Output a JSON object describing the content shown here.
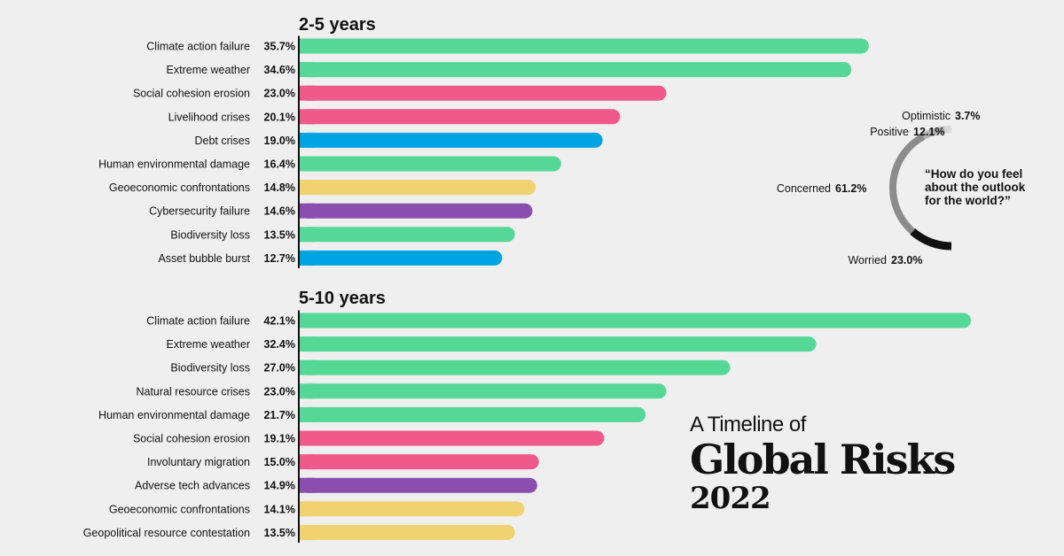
{
  "colors": {
    "environmental": "#55d896",
    "societal": "#f05a8a",
    "economic": "#00a4e0",
    "geopolitical": "#f0d270",
    "technological": "#8a4fae",
    "background": "#f0eff0"
  },
  "chart_data": [
    {
      "type": "bar",
      "title": "2-5 years",
      "categories": [
        "Climate action failure",
        "Extreme weather",
        "Social cohesion erosion",
        "Livelihood crises",
        "Debt crises",
        "Human environmental damage",
        "Geoeconomic confrontations",
        "Cybersecurity failure",
        "Biodiversity loss",
        "Asset bubble burst"
      ],
      "values": [
        35.7,
        34.6,
        23.0,
        20.1,
        19.0,
        16.4,
        14.8,
        14.6,
        13.5,
        12.7
      ],
      "value_labels": [
        "35.7%",
        "34.6%",
        "23.0%",
        "20.1%",
        "19.0%",
        "16.4%",
        "14.8%",
        "14.6%",
        "13.5%",
        "12.7%"
      ],
      "categories_color": [
        "environmental",
        "environmental",
        "societal",
        "societal",
        "economic",
        "environmental",
        "geopolitical",
        "technological",
        "environmental",
        "economic"
      ],
      "xlabel": "",
      "ylabel": "",
      "grid": false
    },
    {
      "type": "bar",
      "title": "5-10 years",
      "categories": [
        "Climate action failure",
        "Extreme weather",
        "Biodiversity loss",
        "Natural resource crises",
        "Human environmental damage",
        "Social cohesion erosion",
        "Involuntary migration",
        "Adverse tech advances",
        "Geoeconomic confrontations",
        "Geopolitical resource contestation"
      ],
      "values": [
        42.1,
        32.4,
        27.0,
        23.0,
        21.7,
        19.1,
        15.0,
        14.9,
        14.1,
        13.5
      ],
      "value_labels": [
        "42.1%",
        "32.4%",
        "27.0%",
        "23.0%",
        "21.7%",
        "19.1%",
        "15.0%",
        "14.9%",
        "14.1%",
        "13.5%"
      ],
      "categories_color": [
        "environmental",
        "environmental",
        "environmental",
        "environmental",
        "environmental",
        "societal",
        "societal",
        "technological",
        "geopolitical",
        "geopolitical"
      ],
      "xlabel": "",
      "ylabel": "",
      "grid": false
    },
    {
      "type": "pie",
      "title": "“How do you feel about the outlook for the world?”",
      "title_lines": [
        "“How do you feel",
        "about the outlook",
        "for the world?”"
      ],
      "categories": [
        "Optimistic",
        "Positive",
        "Concerned",
        "Worried"
      ],
      "values": [
        3.7,
        12.1,
        61.2,
        23.0
      ],
      "value_labels": [
        "3.7%",
        "12.1%",
        "61.2%",
        "23.0%"
      ],
      "colors": [
        "#d8d8d8",
        "#b4b4b4",
        "#8c8c8c",
        "#111111"
      ]
    }
  ],
  "brand": {
    "line1": "A Timeline of",
    "line2": "Global Risks",
    "line3": "2022"
  }
}
